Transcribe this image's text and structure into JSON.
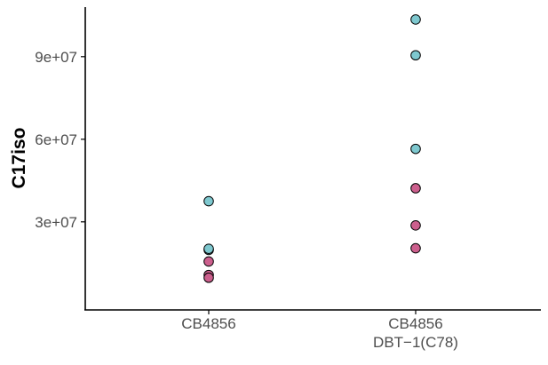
{
  "chart_data": {
    "type": "scatter",
    "title": "",
    "xlabel": "",
    "ylabel": "C17iso",
    "categories": [
      "CB4856",
      "CB4856\nDBT−1(C78)"
    ],
    "ylim": [
      -2000000,
      108000000
    ],
    "yticks": [
      30000000,
      60000000,
      90000000
    ],
    "ytick_labels": [
      "3e+07",
      "6e+07",
      "9e+07"
    ],
    "grid": false,
    "legend": "none",
    "colors": {
      "teal": "#7ec8cf",
      "pink": "#cc5f8d"
    },
    "points": [
      {
        "category": 0,
        "y": 37500000,
        "color": "teal"
      },
      {
        "category": 0,
        "y": 19800000,
        "color": "teal"
      },
      {
        "category": 0,
        "y": 20200000,
        "color": "teal"
      },
      {
        "category": 0,
        "y": 15600000,
        "color": "pink"
      },
      {
        "category": 0,
        "y": 10700000,
        "color": "pink"
      },
      {
        "category": 0,
        "y": 9700000,
        "color": "pink"
      },
      {
        "category": 1,
        "y": 103500000,
        "color": "teal"
      },
      {
        "category": 1,
        "y": 90500000,
        "color": "teal"
      },
      {
        "category": 1,
        "y": 56500000,
        "color": "teal"
      },
      {
        "category": 1,
        "y": 42200000,
        "color": "pink"
      },
      {
        "category": 1,
        "y": 28700000,
        "color": "pink"
      },
      {
        "category": 1,
        "y": 20400000,
        "color": "pink"
      }
    ]
  }
}
